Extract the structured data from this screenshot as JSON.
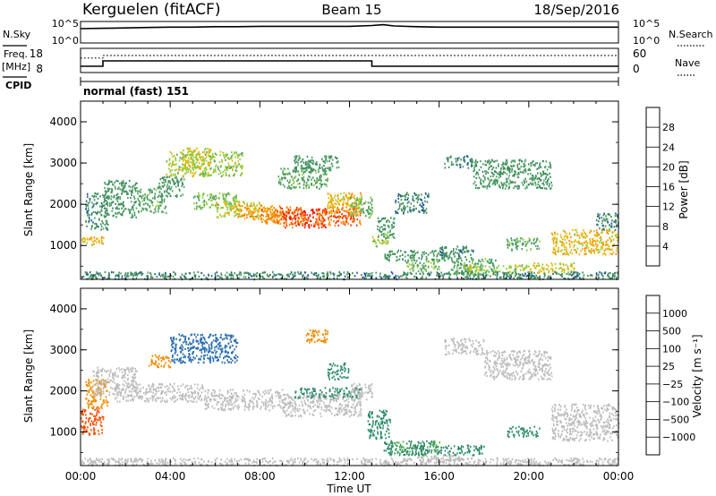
{
  "header": {
    "station": "Kerguelen (fitACF)",
    "beam": "Beam 15",
    "date": "18/Sep/2016"
  },
  "nsky_panel": {
    "left_label": "N.Sky",
    "right_label": "N.Search",
    "yticks": [
      "10^5",
      "10^0"
    ]
  },
  "freq_panel": {
    "left_label_1": "Freq.",
    "left_label_2": "[MHz]",
    "right_label": "Nave",
    "left_ticks": [
      "18",
      "8"
    ],
    "right_ticks": [
      "60",
      "0"
    ],
    "cpid_label": "CPID",
    "mode_label": "normal (fast) 151"
  },
  "colors": {
    "power": [
      "#0000ff",
      "#1d4fa8",
      "#3c8a5c",
      "#4fa064",
      "#8fcc3a",
      "#f0b200",
      "#ff8000",
      "#ff3000",
      "#e80000"
    ],
    "velocity": [
      "#e80000",
      "#ff5000",
      "#f08c00",
      "#f0c000",
      "#c0c0c0",
      "#c0c0c0",
      "#50c020",
      "#308c6c",
      "#2a6db0",
      "#1e40b8"
    ],
    "ground_scatter": "#bdbdbd"
  },
  "chart_data": [
    {
      "type": "line",
      "name": "nsky-panel",
      "ylim": [
        0,
        5
      ],
      "x_hours": [
        0,
        1,
        2,
        3,
        4,
        5,
        6,
        7,
        8,
        9,
        10,
        11,
        12,
        13,
        13.5,
        14,
        15,
        16,
        17,
        18,
        19,
        20,
        21,
        22,
        23,
        24
      ],
      "series": [
        {
          "values": [
            3.4,
            3.5,
            3.6,
            3.7,
            3.8,
            3.8,
            3.9,
            3.9,
            4.0,
            4.0,
            4.0,
            4.0,
            4.0,
            4.2,
            4.4,
            4.1,
            3.9,
            3.8,
            3.8,
            3.8,
            3.8,
            3.8,
            3.8,
            3.8,
            3.8,
            3.8
          ]
        }
      ]
    },
    {
      "type": "line",
      "name": "freq-nave-panel",
      "left_ylim": [
        8,
        18
      ],
      "right_ylim": [
        0,
        60
      ],
      "series": [
        {
          "name": "Freq.",
          "x_hours": [
            0,
            1,
            1,
            13,
            13,
            24
          ],
          "values": [
            10.5,
            10.5,
            13.0,
            13.0,
            10.5,
            10.5
          ]
        },
        {
          "name": "Nave",
          "x_hours": [
            0,
            1,
            1,
            24
          ],
          "values": [
            38,
            38,
            45,
            45
          ]
        }
      ]
    },
    {
      "type": "heatmap",
      "name": "power-panel",
      "xlabel": "",
      "ylabel": "Slant Range [km]",
      "xlim": [
        0,
        24
      ],
      "ylim": [
        180,
        4500
      ],
      "yticks": [
        "1000",
        "2000",
        "3000",
        "4000"
      ],
      "colorbar": {
        "label": "Power [dB]",
        "ticks": [
          "4",
          "8",
          "12",
          "16",
          "20",
          "24",
          "28"
        ]
      },
      "cells": [
        [
          0.0,
          1.0,
          1000,
          1250,
          20
        ],
        [
          0.2,
          1.2,
          1400,
          2300,
          8
        ],
        [
          1.0,
          2.5,
          1700,
          2600,
          10
        ],
        [
          2.5,
          3.8,
          1800,
          2400,
          12
        ],
        [
          3.4,
          4.6,
          2200,
          2700,
          10
        ],
        [
          3.8,
          7.2,
          2700,
          3300,
          16
        ],
        [
          4.5,
          5.8,
          2900,
          3400,
          18
        ],
        [
          5.0,
          7.0,
          1900,
          2300,
          14
        ],
        [
          6.0,
          8.0,
          1700,
          2100,
          18
        ],
        [
          7.0,
          9.0,
          1650,
          2000,
          22
        ],
        [
          8.0,
          10.0,
          1550,
          1950,
          24
        ],
        [
          9.0,
          11.0,
          1450,
          1900,
          28
        ],
        [
          10.5,
          12.5,
          1500,
          1950,
          26
        ],
        [
          8.8,
          11.0,
          2400,
          2900,
          12
        ],
        [
          9.5,
          11.5,
          2800,
          3200,
          10
        ],
        [
          11.0,
          12.5,
          1800,
          2300,
          20
        ],
        [
          12.0,
          13.0,
          1700,
          2200,
          14
        ],
        [
          13.0,
          13.8,
          1000,
          1300,
          16
        ],
        [
          13.2,
          14.0,
          1200,
          1700,
          10
        ],
        [
          14.0,
          15.5,
          1800,
          2300,
          8
        ],
        [
          13.5,
          16.5,
          650,
          900,
          10
        ],
        [
          14.5,
          16.0,
          400,
          650,
          14
        ],
        [
          16.0,
          17.5,
          700,
          1000,
          8
        ],
        [
          16.5,
          18.5,
          300,
          700,
          12
        ],
        [
          17.0,
          20.0,
          300,
          550,
          16
        ],
        [
          16.2,
          17.5,
          2900,
          3200,
          8
        ],
        [
          17.5,
          21.0,
          2400,
          3100,
          10
        ],
        [
          19.0,
          20.5,
          900,
          1200,
          12
        ],
        [
          21.0,
          24.0,
          800,
          1400,
          20
        ],
        [
          20.0,
          22.0,
          350,
          600,
          18
        ],
        [
          23.0,
          24.0,
          1400,
          1800,
          8
        ],
        [
          0.0,
          24.0,
          200,
          380,
          8
        ]
      ]
    },
    {
      "type": "heatmap",
      "name": "velocity-panel",
      "xlabel": "Time UT",
      "ylabel": "Slant Range [km]",
      "xlim": [
        0,
        24
      ],
      "ylim": [
        180,
        4500
      ],
      "xticks": [
        "00:00",
        "04:00",
        "08:00",
        "12:00",
        "16:00",
        "20:00",
        "00:00"
      ],
      "yticks": [
        "1000",
        "2000",
        "3000",
        "4000"
      ],
      "colorbar": {
        "label": "Velocity [m s⁻¹]",
        "ticks": [
          "1000",
          "500",
          "100",
          "25",
          "−25",
          "−100",
          "−500",
          "−1000"
        ]
      },
      "cells": [
        [
          0.0,
          1.0,
          950,
          1600,
          -700
        ],
        [
          0.2,
          1.2,
          1600,
          2300,
          -150
        ],
        [
          0.5,
          2.5,
          1900,
          2600,
          0
        ],
        [
          1.5,
          5.5,
          1750,
          2200,
          0
        ],
        [
          3.0,
          4.0,
          2600,
          2900,
          -300
        ],
        [
          4.0,
          7.0,
          2700,
          3400,
          700
        ],
        [
          5.5,
          9.0,
          1550,
          2050,
          0
        ],
        [
          9.0,
          12.5,
          1400,
          1950,
          0
        ],
        [
          9.5,
          12.5,
          1850,
          2100,
          200
        ],
        [
          10.0,
          11.0,
          3200,
          3500,
          -300
        ],
        [
          11.0,
          12.0,
          2300,
          2700,
          300
        ],
        [
          12.0,
          13.0,
          1800,
          2200,
          0
        ],
        [
          12.8,
          13.8,
          850,
          1550,
          150
        ],
        [
          13.5,
          16.0,
          450,
          800,
          120
        ],
        [
          14.5,
          18.0,
          450,
          700,
          400
        ],
        [
          15.0,
          17.0,
          250,
          450,
          0
        ],
        [
          16.2,
          18.0,
          2900,
          3300,
          0
        ],
        [
          18.0,
          21.0,
          2300,
          3000,
          0
        ],
        [
          19.0,
          20.5,
          900,
          1150,
          300
        ],
        [
          21.0,
          24.0,
          800,
          1700,
          0
        ],
        [
          0.0,
          24.0,
          200,
          380,
          0
        ]
      ]
    }
  ]
}
